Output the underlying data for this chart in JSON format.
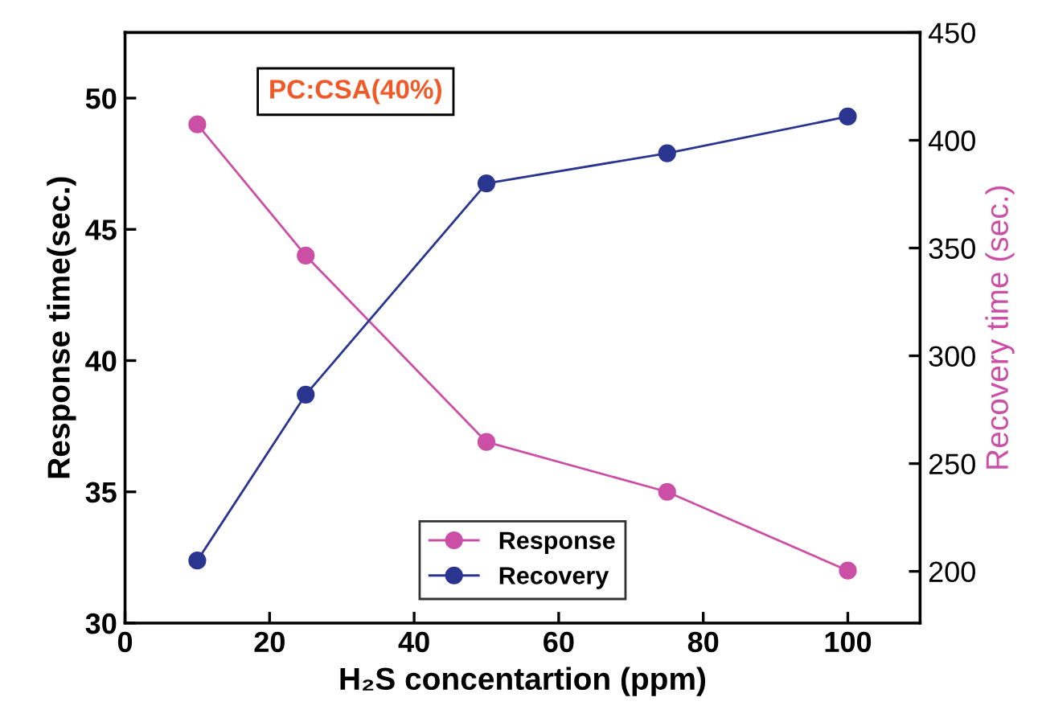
{
  "chart_data": {
    "type": "line",
    "x": [
      10,
      25,
      50,
      75,
      100
    ],
    "series": [
      {
        "name": "Response",
        "color": "#cc4fa6",
        "values": [
          49,
          44,
          36.9,
          35,
          32
        ]
      },
      {
        "name": "Recovery",
        "color": "#2a3590",
        "values": [
          205,
          282,
          380,
          394,
          411
        ],
        "axis": "y2"
      }
    ],
    "xlabel": "H₂S concentartion (ppm)",
    "ylabel": "Response time(sec.)",
    "y2label": "Recovery time (sec.)",
    "annotations": [
      "PC:CSA(40%)"
    ],
    "xlim": [
      0,
      110
    ],
    "xticks": [
      0,
      20,
      40,
      60,
      80,
      100
    ],
    "ylim": [
      30,
      52.5
    ],
    "yticks": [
      30,
      35,
      40,
      45,
      50
    ],
    "y2lim": [
      176,
      450
    ],
    "y2ticks": [
      200,
      250,
      300,
      350,
      400,
      450
    ],
    "marker": "circle",
    "line_style": "solid",
    "grid": false,
    "legend": "bottom"
  }
}
